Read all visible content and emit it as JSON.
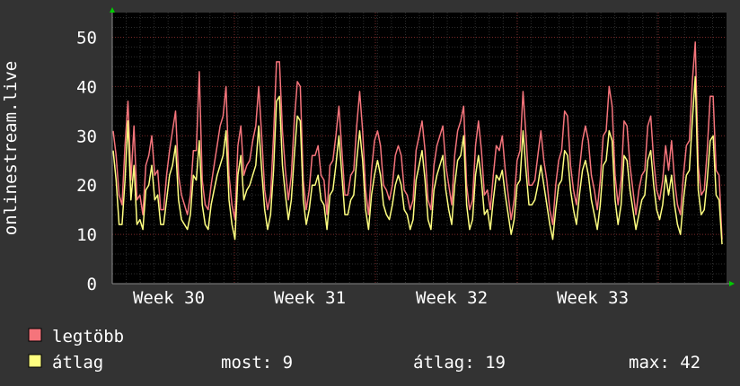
{
  "chart_data": {
    "type": "line",
    "ylabel": "onlinestream.live",
    "ylim": [
      0,
      55
    ],
    "yticks": [
      0,
      10,
      20,
      30,
      40,
      50
    ],
    "x_tick_labels": [
      "Week 30",
      "Week 31",
      "Week 32",
      "Week 33"
    ],
    "grid": true,
    "legend_position": "bottom",
    "series": [
      {
        "name": "legtöbb",
        "color": "#f5747b",
        "values": [
          31,
          26,
          18,
          16,
          28,
          37,
          21,
          32,
          17,
          18,
          14,
          24,
          26,
          30,
          22,
          23,
          15,
          15,
          22,
          27,
          31,
          35,
          22,
          18,
          16,
          14,
          18,
          27,
          27,
          43,
          21,
          16,
          15,
          20,
          24,
          28,
          32,
          34,
          40,
          22,
          16,
          13,
          28,
          32,
          22,
          24,
          25,
          29,
          32,
          40,
          30,
          19,
          15,
          18,
          30,
          45,
          45,
          31,
          23,
          17,
          22,
          33,
          41,
          40,
          21,
          15,
          19,
          26,
          26,
          28,
          22,
          21,
          14,
          24,
          25,
          30,
          36,
          27,
          18,
          18,
          22,
          23,
          32,
          39,
          31,
          19,
          14,
          23,
          29,
          31,
          28,
          20,
          19,
          17,
          20,
          26,
          28,
          26,
          19,
          18,
          15,
          17,
          27,
          30,
          33,
          27,
          17,
          15,
          24,
          28,
          30,
          32,
          24,
          20,
          16,
          26,
          31,
          33,
          36,
          20,
          15,
          17,
          28,
          33,
          27,
          18,
          19,
          15,
          22,
          28,
          27,
          30,
          23,
          18,
          13,
          17,
          25,
          27,
          39,
          30,
          20,
          20,
          21,
          26,
          31,
          25,
          21,
          15,
          12,
          20,
          25,
          27,
          35,
          34,
          24,
          19,
          16,
          23,
          29,
          32,
          29,
          22,
          19,
          15,
          21,
          30,
          31,
          40,
          36,
          22,
          16,
          21,
          33,
          32,
          24,
          19,
          14,
          19,
          22,
          23,
          32,
          34,
          25,
          19,
          17,
          21,
          28,
          23,
          29,
          21,
          16,
          14,
          22,
          28,
          29,
          41,
          49,
          24,
          18,
          19,
          27,
          38,
          38,
          23,
          22,
          9
        ],
        "points_note": "estimated daily-ish samples"
      },
      {
        "name": "átlag",
        "color": "#ffff80",
        "values": [
          27,
          21,
          12,
          12,
          21,
          33,
          17,
          24,
          12,
          13,
          11,
          19,
          20,
          24,
          17,
          18,
          12,
          12,
          17,
          22,
          24,
          28,
          17,
          13,
          12,
          11,
          14,
          22,
          21,
          29,
          16,
          12,
          11,
          16,
          19,
          22,
          24,
          26,
          31,
          17,
          12,
          9,
          22,
          26,
          17,
          19,
          20,
          22,
          24,
          32,
          23,
          15,
          11,
          14,
          23,
          37,
          38,
          24,
          18,
          13,
          17,
          26,
          34,
          33,
          17,
          12,
          15,
          20,
          20,
          22,
          17,
          16,
          11,
          18,
          19,
          24,
          30,
          22,
          14,
          14,
          17,
          18,
          25,
          31,
          25,
          15,
          11,
          18,
          22,
          25,
          22,
          16,
          14,
          13,
          16,
          20,
          22,
          20,
          15,
          14,
          11,
          13,
          21,
          24,
          27,
          21,
          13,
          11,
          19,
          22,
          24,
          26,
          19,
          15,
          12,
          20,
          25,
          26,
          30,
          16,
          11,
          13,
          22,
          26,
          21,
          14,
          15,
          11,
          17,
          22,
          21,
          23,
          18,
          14,
          10,
          13,
          20,
          21,
          31,
          23,
          16,
          16,
          17,
          20,
          24,
          20,
          16,
          12,
          9,
          15,
          20,
          21,
          27,
          26,
          19,
          15,
          12,
          18,
          23,
          25,
          22,
          17,
          14,
          11,
          16,
          24,
          25,
          31,
          29,
          17,
          12,
          16,
          26,
          25,
          19,
          15,
          11,
          14,
          17,
          18,
          25,
          27,
          20,
          15,
          13,
          16,
          22,
          18,
          22,
          16,
          12,
          10,
          17,
          22,
          23,
          33,
          42,
          19,
          14,
          15,
          21,
          29,
          30,
          18,
          17,
          8
        ]
      }
    ]
  },
  "legend": {
    "max_label": "legtöbb",
    "avg_label": "átlag",
    "stats": {
      "now": "most: 9",
      "avg": "átlag: 19",
      "max": "max: 42"
    }
  }
}
